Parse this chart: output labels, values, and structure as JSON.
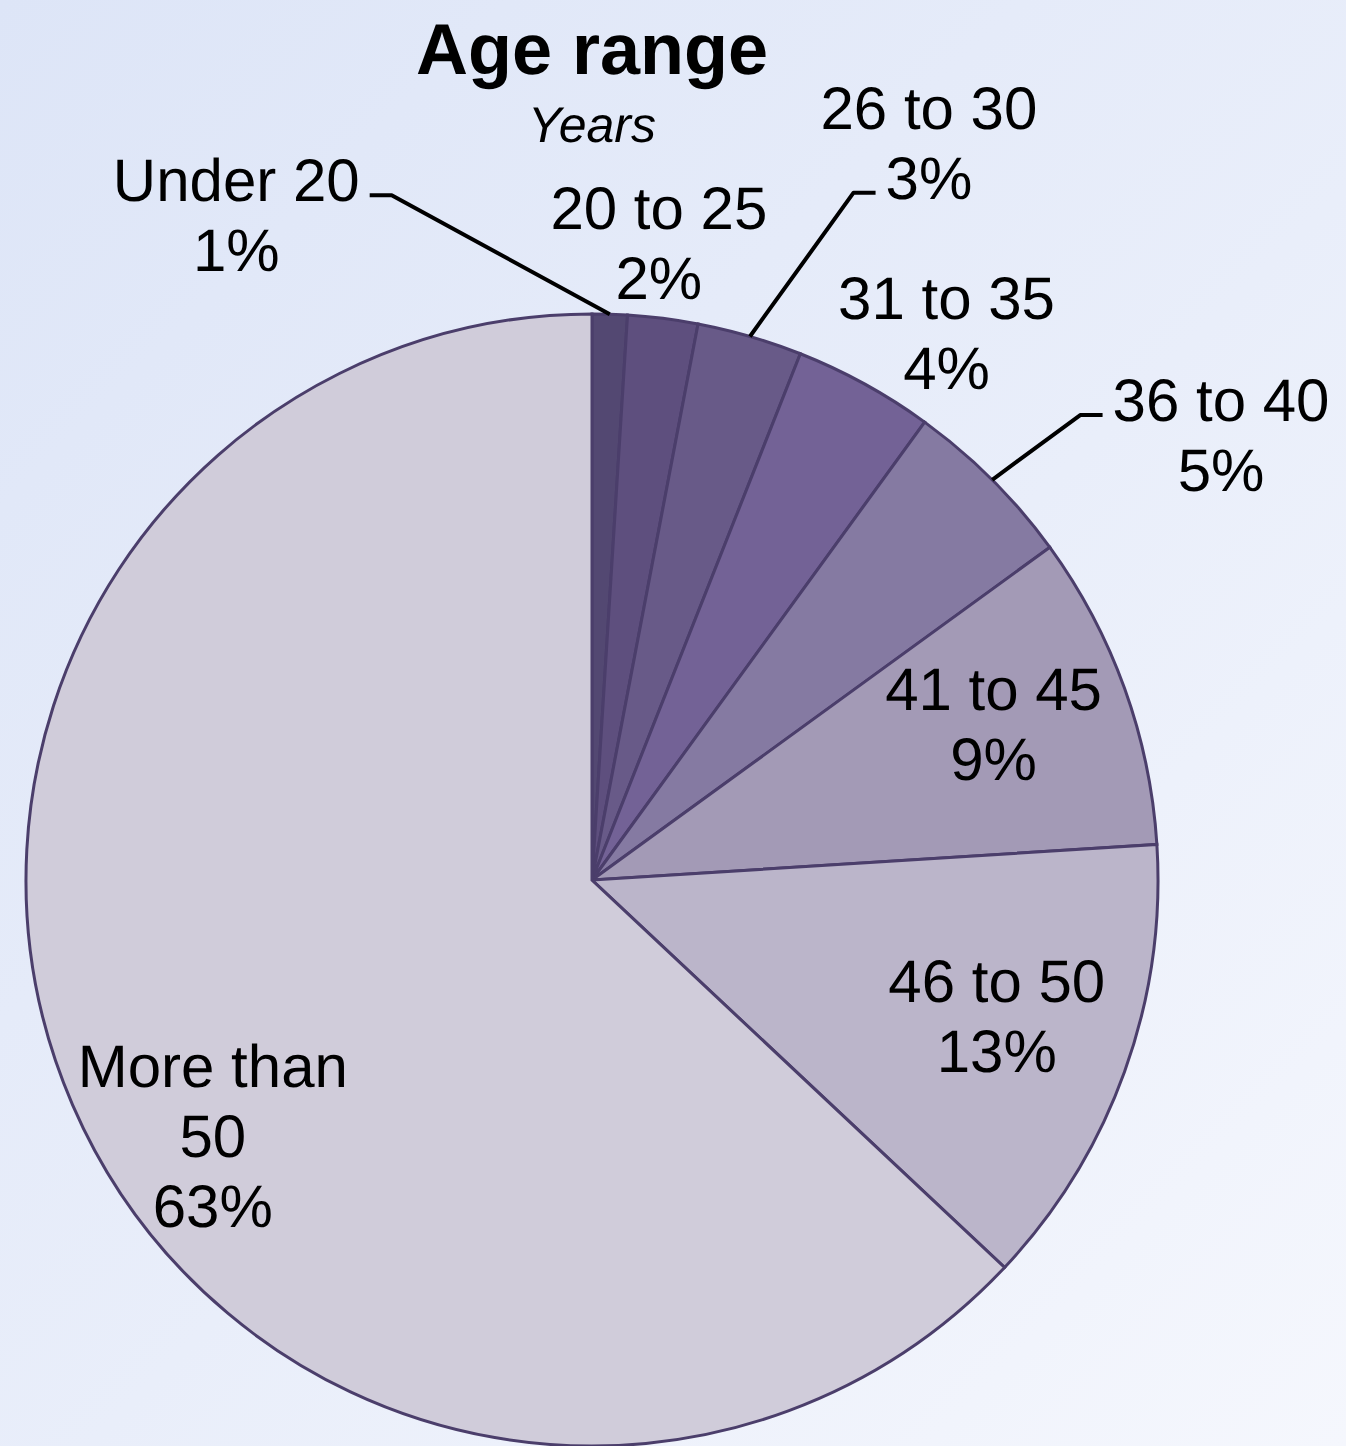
{
  "chart_data": {
    "type": "pie",
    "title": "Age range",
    "subtitle": "Years",
    "categories": [
      "Under 20",
      "20 to 25",
      "26 to 30",
      "31 to 35",
      "36 to 40",
      "41 to 45",
      "46 to 50",
      "More than 50"
    ],
    "values": [
      1,
      2,
      3,
      4,
      5,
      9,
      13,
      63
    ],
    "colors": [
      "#534872",
      "#5e4f7e",
      "#685a88",
      "#736296",
      "#857aa2",
      "#a39ab6",
      "#bbb5ca",
      "#d0ccda"
    ],
    "value_labels": [
      "1%",
      "2%",
      "3%",
      "4%",
      "5%",
      "9%",
      "13%",
      "63%"
    ]
  }
}
